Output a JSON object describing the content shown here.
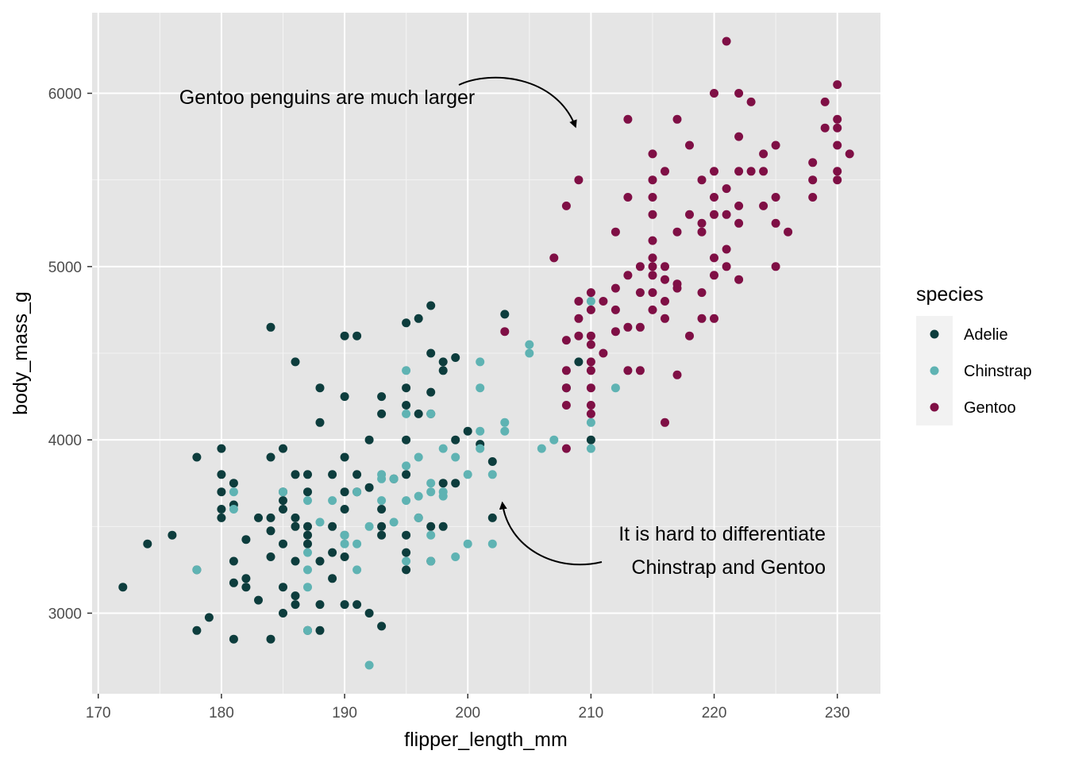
{
  "chart_data": {
    "type": "scatter",
    "title": "",
    "xlabel": "flipper_length_mm",
    "ylabel": "body_mass_g",
    "xlim": [
      169.5,
      233.5
    ],
    "ylim": [
      2535,
      6465
    ],
    "x_ticks": [
      170,
      180,
      190,
      200,
      210,
      220,
      230
    ],
    "y_ticks": [
      3000,
      4000,
      5000,
      6000
    ],
    "grid": true,
    "background": "#e5e5e5",
    "legend": {
      "title": "species",
      "placement": "right",
      "entries": [
        "Adelie",
        "Chinstrap",
        "Gentoo"
      ]
    },
    "annotations": [
      {
        "lines": [
          "Gentoo penguins are much larger"
        ],
        "arrow_to": [
          209,
          5780
        ]
      },
      {
        "lines": [
          "It is hard to differentiate",
          "Chinstrap and Gentoo"
        ],
        "arrow_to": [
          203,
          3650
        ]
      }
    ],
    "series": [
      {
        "name": "Adelie",
        "color": "#0d3d3d",
        "points": [
          [
            172,
            3150
          ],
          [
            174,
            3400
          ],
          [
            176,
            3450
          ],
          [
            178,
            2900
          ],
          [
            178,
            3900
          ],
          [
            178,
            3250
          ],
          [
            179,
            2975
          ],
          [
            180,
            3550
          ],
          [
            180,
            3600
          ],
          [
            180,
            3700
          ],
          [
            180,
            3800
          ],
          [
            180,
            3950
          ],
          [
            181,
            2850
          ],
          [
            181,
            3175
          ],
          [
            181,
            3300
          ],
          [
            181,
            3625
          ],
          [
            181,
            3750
          ],
          [
            182,
            3150
          ],
          [
            182,
            3200
          ],
          [
            182,
            3425
          ],
          [
            183,
            3075
          ],
          [
            183,
            3550
          ],
          [
            184,
            2850
          ],
          [
            184,
            3325
          ],
          [
            184,
            3475
          ],
          [
            184,
            3550
          ],
          [
            184,
            3900
          ],
          [
            184,
            4650
          ],
          [
            185,
            3000
          ],
          [
            185,
            3150
          ],
          [
            185,
            3400
          ],
          [
            185,
            3600
          ],
          [
            185,
            3650
          ],
          [
            185,
            3700
          ],
          [
            185,
            3950
          ],
          [
            186,
            3050
          ],
          [
            186,
            3100
          ],
          [
            186,
            3300
          ],
          [
            186,
            3500
          ],
          [
            186,
            3550
          ],
          [
            186,
            3800
          ],
          [
            186,
            4450
          ],
          [
            187,
            2900
          ],
          [
            187,
            3400
          ],
          [
            187,
            3450
          ],
          [
            187,
            3500
          ],
          [
            187,
            3700
          ],
          [
            187,
            3800
          ],
          [
            188,
            2900
          ],
          [
            188,
            3050
          ],
          [
            188,
            3300
          ],
          [
            188,
            4100
          ],
          [
            188,
            4300
          ],
          [
            189,
            3200
          ],
          [
            189,
            3350
          ],
          [
            189,
            3500
          ],
          [
            189,
            3800
          ],
          [
            190,
            3050
          ],
          [
            190,
            3325
          ],
          [
            190,
            3450
          ],
          [
            190,
            3600
          ],
          [
            190,
            3700
          ],
          [
            190,
            3900
          ],
          [
            190,
            4250
          ],
          [
            190,
            4600
          ],
          [
            191,
            3050
          ],
          [
            191,
            3800
          ],
          [
            191,
            3700
          ],
          [
            191,
            4600
          ],
          [
            192,
            3000
          ],
          [
            192,
            3725
          ],
          [
            192,
            4000
          ],
          [
            193,
            2925
          ],
          [
            193,
            3450
          ],
          [
            193,
            3500
          ],
          [
            193,
            3600
          ],
          [
            193,
            4150
          ],
          [
            193,
            4250
          ],
          [
            194,
            3775
          ],
          [
            195,
            3250
          ],
          [
            195,
            3350
          ],
          [
            195,
            3450
          ],
          [
            195,
            3800
          ],
          [
            195,
            4000
          ],
          [
            195,
            4200
          ],
          [
            195,
            4300
          ],
          [
            195,
            4675
          ],
          [
            196,
            3550
          ],
          [
            196,
            4150
          ],
          [
            196,
            4700
          ],
          [
            197,
            3300
          ],
          [
            197,
            3500
          ],
          [
            197,
            4150
          ],
          [
            197,
            4275
          ],
          [
            197,
            4500
          ],
          [
            197,
            4775
          ],
          [
            198,
            3500
          ],
          [
            198,
            3750
          ],
          [
            198,
            4400
          ],
          [
            198,
            4450
          ],
          [
            199,
            3750
          ],
          [
            199,
            4000
          ],
          [
            199,
            4475
          ],
          [
            200,
            4050
          ],
          [
            201,
            3975
          ],
          [
            202,
            3550
          ],
          [
            202,
            3875
          ],
          [
            203,
            4725
          ],
          [
            208,
            4300
          ],
          [
            210,
            4000
          ],
          [
            209,
            4450
          ]
        ]
      },
      {
        "name": "Chinstrap",
        "color": "#5fb3b3",
        "points": [
          [
            178,
            3250
          ],
          [
            181,
            3600
          ],
          [
            181,
            3700
          ],
          [
            185,
            3700
          ],
          [
            187,
            2900
          ],
          [
            187,
            3150
          ],
          [
            187,
            3250
          ],
          [
            187,
            3350
          ],
          [
            187,
            3650
          ],
          [
            188,
            3525
          ],
          [
            189,
            3650
          ],
          [
            190,
            3450
          ],
          [
            190,
            3400
          ],
          [
            191,
            3250
          ],
          [
            191,
            3400
          ],
          [
            191,
            3700
          ],
          [
            192,
            2700
          ],
          [
            192,
            3500
          ],
          [
            193,
            3650
          ],
          [
            193,
            3775
          ],
          [
            193,
            3800
          ],
          [
            194,
            3525
          ],
          [
            194,
            3775
          ],
          [
            195,
            3300
          ],
          [
            195,
            3650
          ],
          [
            195,
            3850
          ],
          [
            195,
            4150
          ],
          [
            195,
            4400
          ],
          [
            196,
            3550
          ],
          [
            196,
            3675
          ],
          [
            196,
            3900
          ],
          [
            197,
            3300
          ],
          [
            197,
            3450
          ],
          [
            197,
            3700
          ],
          [
            197,
            3750
          ],
          [
            197,
            4150
          ],
          [
            198,
            3675
          ],
          [
            198,
            3700
          ],
          [
            198,
            3950
          ],
          [
            199,
            3325
          ],
          [
            199,
            3900
          ],
          [
            200,
            3400
          ],
          [
            200,
            3800
          ],
          [
            201,
            4050
          ],
          [
            201,
            4450
          ],
          [
            201,
            3950
          ],
          [
            201,
            4300
          ],
          [
            202,
            3400
          ],
          [
            202,
            3800
          ],
          [
            203,
            4050
          ],
          [
            203,
            4100
          ],
          [
            205,
            4500
          ],
          [
            205,
            4550
          ],
          [
            206,
            3950
          ],
          [
            207,
            4000
          ],
          [
            210,
            3950
          ],
          [
            210,
            4100
          ],
          [
            210,
            4800
          ],
          [
            212,
            4300
          ]
        ]
      },
      {
        "name": "Gentoo",
        "color": "#7f0f45",
        "points": [
          [
            203,
            4625
          ],
          [
            207,
            5050
          ],
          [
            208,
            3950
          ],
          [
            208,
            4200
          ],
          [
            208,
            4300
          ],
          [
            208,
            4400
          ],
          [
            208,
            4575
          ],
          [
            208,
            5350
          ],
          [
            209,
            4600
          ],
          [
            209,
            4700
          ],
          [
            209,
            4800
          ],
          [
            209,
            5500
          ],
          [
            210,
            4150
          ],
          [
            210,
            4200
          ],
          [
            210,
            4300
          ],
          [
            210,
            4400
          ],
          [
            210,
            4450
          ],
          [
            210,
            4550
          ],
          [
            210,
            4600
          ],
          [
            210,
            4750
          ],
          [
            210,
            4850
          ],
          [
            211,
            4500
          ],
          [
            211,
            4800
          ],
          [
            212,
            4750
          ],
          [
            212,
            4875
          ],
          [
            212,
            5200
          ],
          [
            212,
            4625
          ],
          [
            213,
            4400
          ],
          [
            213,
            4650
          ],
          [
            213,
            4950
          ],
          [
            213,
            5400
          ],
          [
            213,
            5850
          ],
          [
            214,
            4400
          ],
          [
            214,
            4650
          ],
          [
            214,
            4850
          ],
          [
            214,
            5000
          ],
          [
            215,
            4750
          ],
          [
            215,
            4850
          ],
          [
            215,
            4950
          ],
          [
            215,
            5000
          ],
          [
            215,
            5050
          ],
          [
            215,
            5150
          ],
          [
            215,
            5300
          ],
          [
            215,
            5400
          ],
          [
            215,
            5500
          ],
          [
            215,
            5650
          ],
          [
            216,
            4100
          ],
          [
            216,
            4700
          ],
          [
            216,
            4800
          ],
          [
            216,
            4925
          ],
          [
            216,
            5000
          ],
          [
            216,
            5550
          ],
          [
            217,
            4375
          ],
          [
            217,
            4875
          ],
          [
            217,
            4900
          ],
          [
            217,
            5200
          ],
          [
            217,
            5850
          ],
          [
            218,
            4600
          ],
          [
            218,
            5300
          ],
          [
            218,
            5700
          ],
          [
            219,
            4700
          ],
          [
            219,
            4850
          ],
          [
            219,
            5200
          ],
          [
            219,
            5250
          ],
          [
            219,
            5500
          ],
          [
            220,
            4700
          ],
          [
            220,
            4950
          ],
          [
            220,
            5050
          ],
          [
            220,
            5400
          ],
          [
            220,
            5550
          ],
          [
            220,
            5300
          ],
          [
            220,
            6000
          ],
          [
            221,
            5000
          ],
          [
            221,
            5100
          ],
          [
            221,
            5300
          ],
          [
            221,
            5450
          ],
          [
            221,
            6300
          ],
          [
            222,
            4925
          ],
          [
            222,
            5250
          ],
          [
            222,
            5350
          ],
          [
            222,
            5550
          ],
          [
            222,
            5750
          ],
          [
            222,
            6000
          ],
          [
            223,
            5550
          ],
          [
            223,
            5950
          ],
          [
            224,
            5350
          ],
          [
            224,
            5550
          ],
          [
            224,
            5650
          ],
          [
            225,
            5000
          ],
          [
            225,
            5250
          ],
          [
            225,
            5400
          ],
          [
            225,
            5700
          ],
          [
            226,
            5200
          ],
          [
            228,
            5400
          ],
          [
            228,
            5500
          ],
          [
            228,
            5600
          ],
          [
            229,
            5800
          ],
          [
            229,
            5950
          ],
          [
            230,
            5500
          ],
          [
            230,
            5550
          ],
          [
            230,
            5700
          ],
          [
            230,
            5800
          ],
          [
            230,
            5850
          ],
          [
            230,
            6050
          ],
          [
            231,
            5650
          ]
        ]
      }
    ]
  }
}
